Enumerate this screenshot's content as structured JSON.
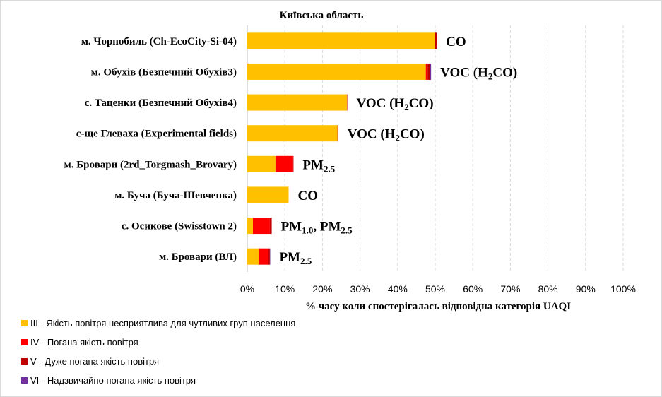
{
  "chart_data": {
    "type": "bar",
    "orientation": "horizontal",
    "stacked": true,
    "title": "Київська область",
    "xlabel": "% часу коли спостерігалась відповідна категорія UAQI",
    "ylabel": "",
    "xlim": [
      0,
      100
    ],
    "x_ticks": [
      "0%",
      "10%",
      "20%",
      "30%",
      "40%",
      "50%",
      "60%",
      "70%",
      "80%",
      "90%",
      "100%"
    ],
    "grid": "vertical-dashed",
    "legend_position": "bottom-left",
    "categories": [
      "м. Чорнобиль (Ch-EcoCity-Si-04)",
      "м. Обухів (Безпечний Обухів3)",
      "с. Таценки (Безпечний Обухів4)",
      "с-ще Глеваха (Experimental fields)",
      "м. Бровари (2rd_Torgmash_Brovary)",
      "м. Буча (Буча-Шевченка)",
      "с. Осикове (Swisstown 2)",
      "м. Бровари (ВЛ)"
    ],
    "annotations": [
      {
        "main": "CO",
        "sub": ""
      },
      {
        "main": "VOC (H",
        "sub": "2",
        "tail": "CO)"
      },
      {
        "main": "VOC (H",
        "sub": "2",
        "tail": "CO)"
      },
      {
        "main": "VOC (H",
        "sub": "2",
        "tail": "CO)"
      },
      {
        "main": "PM",
        "sub": "2.5",
        "tail": ""
      },
      {
        "main": "CO",
        "sub": ""
      },
      {
        "main": "PM",
        "sub": "1.0",
        "tail": ", PM",
        "sub2": "2.5"
      },
      {
        "main": "PM",
        "sub": "2.5",
        "tail": ""
      }
    ],
    "series": [
      {
        "name": "III - Якість повітря несприятлива для чутливих груп населення",
        "color": "#FFC000",
        "values": [
          50.0,
          47.5,
          26.5,
          24.0,
          7.5,
          11.0,
          1.5,
          3.0
        ]
      },
      {
        "name": "IV - Погана якість повітря",
        "color": "#FF0000",
        "values": [
          0.0,
          0.5,
          0.0,
          0.0,
          4.7,
          0.0,
          4.5,
          2.5
        ]
      },
      {
        "name": "V - Дуже погана якість повітря",
        "color": "#C00000",
        "values": [
          0.4,
          0.6,
          0.1,
          0.2,
          0.1,
          0.0,
          0.5,
          0.5
        ]
      },
      {
        "name": "VI - Надзвичайно погана якість повітря",
        "color": "#7030A0",
        "values": [
          0.0,
          0.3,
          0.0,
          0.0,
          0.0,
          0.0,
          0.0,
          0.1
        ]
      }
    ]
  }
}
